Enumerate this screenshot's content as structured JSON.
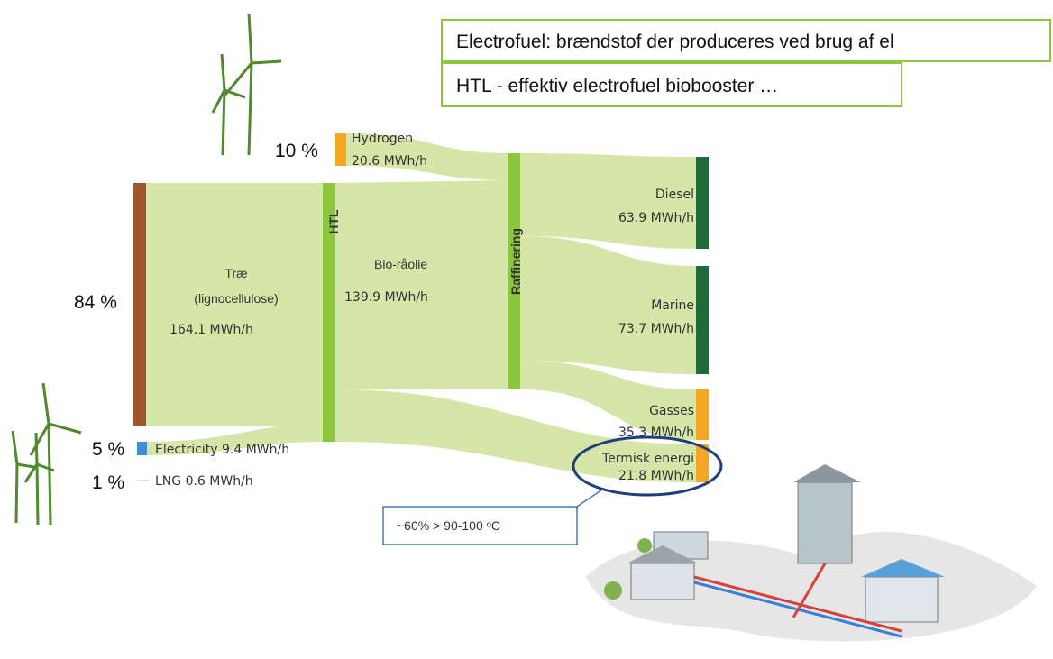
{
  "notes": [
    "Electrofuel: brændstof der produceres ved brug af el",
    "HTL - effektiv electrofuel biobooster …"
  ],
  "inputs": {
    "hydrogen": {
      "share": "10 %",
      "label": "Hydrogen",
      "value": "20.6 MWh/h"
    },
    "wood": {
      "share": "84 %",
      "label": "Træ",
      "sublabel": "(lignocellulose)",
      "value": "164.1 MWh/h"
    },
    "electricity": {
      "share": "5 %",
      "label": "Electricity 9.4 MWh/h"
    },
    "lng": {
      "share": "1 %",
      "label": "LNG 0.6 MWh/h"
    }
  },
  "process": {
    "htl": "HTL",
    "bio_oil": "Bio-råolie",
    "bio_oil_value": "139.9 MWh/h",
    "refining": "Raffinering"
  },
  "outputs": [
    {
      "label": "Diesel",
      "value": "63.9 MWh/h"
    },
    {
      "label": "Marine",
      "value": "73.7 MWh/h"
    },
    {
      "label": "Gasses",
      "value": "35.3 MWh/h"
    },
    {
      "label": "Termisk energi",
      "value": "21.8 MWh/h"
    }
  ],
  "callout": "~60% > 90-100 ᵒC"
}
